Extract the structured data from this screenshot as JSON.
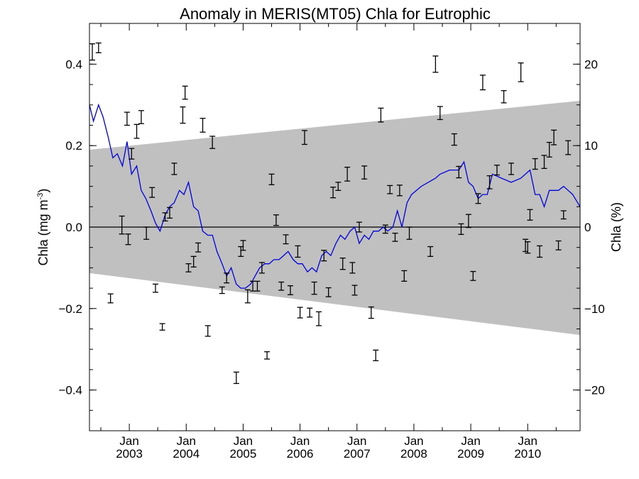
{
  "chart_data": {
    "type": "scatter",
    "title": "Anomaly in MERIS(MT05) Chla for Eutrophic",
    "ylabel_left": "Chla (mg m",
    "ylabel_left_sup": "-3",
    "ylabel_left_close": ")",
    "ylabel_right": "Chla (%)",
    "xlim": [
      2002.3,
      2010.92
    ],
    "ylim": [
      -0.5,
      0.5
    ],
    "ylim_right": [
      -25,
      25
    ],
    "y_ticks": [
      -0.4,
      -0.2,
      0.0,
      0.2,
      0.4
    ],
    "y_tick_labels": [
      "−0.4",
      "−0.2",
      "0.0",
      "0.2",
      "0.4"
    ],
    "y_ticks_right": [
      -20,
      -10,
      0,
      10,
      20
    ],
    "y_tick_labels_right": [
      "−20",
      "−10",
      "0",
      "10",
      "20"
    ],
    "x_ticks": [
      {
        "x": 2003.0,
        "month": "Jan",
        "year": "2003"
      },
      {
        "x": 2004.0,
        "month": "Jan",
        "year": "2004"
      },
      {
        "x": 2005.0,
        "month": "Jan",
        "year": "2005"
      },
      {
        "x": 2006.0,
        "month": "Jan",
        "year": "2006"
      },
      {
        "x": 2007.0,
        "month": "Jan",
        "year": "2007"
      },
      {
        "x": 2008.0,
        "month": "Jan",
        "year": "2008"
      },
      {
        "x": 2009.0,
        "month": "Jan",
        "year": "2009"
      },
      {
        "x": 2010.0,
        "month": "Jan",
        "year": "2010"
      }
    ],
    "band": {
      "color": "#c0c0c0",
      "upper": [
        [
          2002.3,
          0.19
        ],
        [
          2010.92,
          0.31
        ]
      ],
      "lower": [
        [
          2002.3,
          -0.113
        ],
        [
          2010.92,
          -0.265
        ]
      ]
    },
    "zero_line": 0.0,
    "line": {
      "color": "#0000dd",
      "points": [
        [
          2002.3,
          0.3
        ],
        [
          2002.37,
          0.26
        ],
        [
          2002.46,
          0.3
        ],
        [
          2002.54,
          0.27
        ],
        [
          2002.63,
          0.22
        ],
        [
          2002.71,
          0.17
        ],
        [
          2002.79,
          0.18
        ],
        [
          2002.88,
          0.15
        ],
        [
          2002.96,
          0.21
        ],
        [
          2003.04,
          0.13
        ],
        [
          2003.13,
          0.15
        ],
        [
          2003.21,
          0.09
        ],
        [
          2003.29,
          0.07
        ],
        [
          2003.38,
          0.04
        ],
        [
          2003.46,
          0.01
        ],
        [
          2003.54,
          -0.01
        ],
        [
          2003.63,
          0.03
        ],
        [
          2003.71,
          0.05
        ],
        [
          2003.79,
          0.06
        ],
        [
          2003.88,
          0.09
        ],
        [
          2003.96,
          0.08
        ],
        [
          2004.04,
          0.11
        ],
        [
          2004.13,
          0.05
        ],
        [
          2004.21,
          0.04
        ],
        [
          2004.29,
          -0.01
        ],
        [
          2004.38,
          -0.02
        ],
        [
          2004.46,
          -0.02
        ],
        [
          2004.54,
          -0.06
        ],
        [
          2004.63,
          -0.09
        ],
        [
          2004.71,
          -0.12
        ],
        [
          2004.79,
          -0.1
        ],
        [
          2004.88,
          -0.14
        ],
        [
          2004.96,
          -0.15
        ],
        [
          2005.04,
          -0.15
        ],
        [
          2005.13,
          -0.14
        ],
        [
          2005.21,
          -0.12
        ],
        [
          2005.29,
          -0.1
        ],
        [
          2005.38,
          -0.09
        ],
        [
          2005.46,
          -0.09
        ],
        [
          2005.54,
          -0.08
        ],
        [
          2005.63,
          -0.08
        ],
        [
          2005.71,
          -0.07
        ],
        [
          2005.79,
          -0.06
        ],
        [
          2005.88,
          -0.08
        ],
        [
          2005.96,
          -0.09
        ],
        [
          2006.04,
          -0.09
        ],
        [
          2006.13,
          -0.11
        ],
        [
          2006.21,
          -0.1
        ],
        [
          2006.29,
          -0.11
        ],
        [
          2006.38,
          -0.07
        ],
        [
          2006.46,
          -0.06
        ],
        [
          2006.54,
          -0.07
        ],
        [
          2006.63,
          -0.04
        ],
        [
          2006.71,
          -0.02
        ],
        [
          2006.79,
          -0.03
        ],
        [
          2006.88,
          -0.01
        ],
        [
          2006.96,
          0.0
        ],
        [
          2007.04,
          -0.04
        ],
        [
          2007.13,
          -0.02
        ],
        [
          2007.21,
          -0.03
        ],
        [
          2007.29,
          -0.01
        ],
        [
          2007.38,
          -0.01
        ],
        [
          2007.46,
          0.0
        ],
        [
          2007.54,
          -0.01
        ],
        [
          2007.63,
          0.0
        ],
        [
          2007.71,
          0.04
        ],
        [
          2007.79,
          0.0
        ],
        [
          2007.88,
          0.06
        ],
        [
          2007.96,
          0.08
        ],
        [
          2008.13,
          0.1
        ],
        [
          2008.38,
          0.12
        ],
        [
          2008.46,
          0.13
        ],
        [
          2008.63,
          0.14
        ],
        [
          2008.79,
          0.14
        ],
        [
          2008.88,
          0.16
        ],
        [
          2008.96,
          0.11
        ],
        [
          2009.04,
          0.1
        ],
        [
          2009.13,
          0.07
        ],
        [
          2009.21,
          0.08
        ],
        [
          2009.29,
          0.08
        ],
        [
          2009.38,
          0.13
        ],
        [
          2009.54,
          0.12
        ],
        [
          2009.71,
          0.11
        ],
        [
          2009.88,
          0.12
        ],
        [
          2010.04,
          0.14
        ],
        [
          2010.13,
          0.08
        ],
        [
          2010.21,
          0.08
        ],
        [
          2010.29,
          0.05
        ],
        [
          2010.38,
          0.09
        ],
        [
          2010.54,
          0.09
        ],
        [
          2010.63,
          0.1
        ],
        [
          2010.71,
          0.09
        ],
        [
          2010.79,
          0.08
        ],
        [
          2010.92,
          0.05
        ]
      ]
    },
    "errorbars": {
      "color": "#000000",
      "points": [
        [
          2002.35,
          0.43,
          0.02
        ],
        [
          2002.46,
          0.44,
          0.012
        ],
        [
          2002.67,
          -0.175,
          0.011
        ],
        [
          2002.87,
          0.005,
          0.022
        ],
        [
          2002.96,
          0.266,
          0.016
        ],
        [
          2002.98,
          -0.03,
          0.013
        ],
        [
          2003.04,
          0.18,
          0.013
        ],
        [
          2003.13,
          0.235,
          0.017
        ],
        [
          2003.21,
          0.27,
          0.016
        ],
        [
          2003.3,
          -0.015,
          0.015
        ],
        [
          2003.4,
          0.085,
          0.012
        ],
        [
          2003.46,
          -0.15,
          0.01
        ],
        [
          2003.58,
          -0.245,
          0.008
        ],
        [
          2003.63,
          0.025,
          0.01
        ],
        [
          2003.71,
          0.035,
          0.013
        ],
        [
          2003.79,
          0.143,
          0.014
        ],
        [
          2003.94,
          0.275,
          0.02
        ],
        [
          2003.98,
          0.33,
          0.016
        ],
        [
          2004.04,
          -0.1,
          0.01
        ],
        [
          2004.13,
          -0.085,
          0.013
        ],
        [
          2004.21,
          -0.05,
          0.011
        ],
        [
          2004.29,
          0.25,
          0.017
        ],
        [
          2004.38,
          -0.255,
          0.013
        ],
        [
          2004.46,
          0.208,
          0.015
        ],
        [
          2004.63,
          -0.155,
          0.008
        ],
        [
          2004.71,
          -0.125,
          0.012
        ],
        [
          2004.88,
          -0.37,
          0.014
        ],
        [
          2004.96,
          -0.06,
          0.012
        ],
        [
          2005.0,
          -0.045,
          0.012
        ],
        [
          2005.08,
          -0.17,
          0.016
        ],
        [
          2005.17,
          -0.145,
          0.012
        ],
        [
          2005.25,
          -0.145,
          0.012
        ],
        [
          2005.33,
          -0.1,
          0.013
        ],
        [
          2005.42,
          -0.315,
          0.009
        ],
        [
          2005.5,
          0.117,
          0.013
        ],
        [
          2005.58,
          0.017,
          0.013
        ],
        [
          2005.67,
          -0.145,
          0.01
        ],
        [
          2005.75,
          -0.03,
          0.011
        ],
        [
          2005.83,
          -0.155,
          0.011
        ],
        [
          2005.96,
          -0.06,
          0.014
        ],
        [
          2006.0,
          -0.21,
          0.013
        ],
        [
          2006.08,
          0.22,
          0.017
        ],
        [
          2006.17,
          -0.21,
          0.011
        ],
        [
          2006.25,
          -0.15,
          0.015
        ],
        [
          2006.33,
          -0.225,
          0.017
        ],
        [
          2006.42,
          -0.07,
          0.013
        ],
        [
          2006.5,
          -0.16,
          0.011
        ],
        [
          2006.58,
          0.085,
          0.013
        ],
        [
          2006.67,
          0.1,
          0.01
        ],
        [
          2006.75,
          -0.09,
          0.014
        ],
        [
          2006.83,
          0.13,
          0.017
        ],
        [
          2006.92,
          -0.1,
          0.013
        ],
        [
          2006.96,
          -0.155,
          0.012
        ],
        [
          2007.04,
          0.0,
          0.012
        ],
        [
          2007.13,
          0.134,
          0.016
        ],
        [
          2007.25,
          -0.21,
          0.014
        ],
        [
          2007.33,
          -0.315,
          0.013
        ],
        [
          2007.42,
          0.275,
          0.017
        ],
        [
          2007.5,
          -0.005,
          0.01
        ],
        [
          2007.58,
          0.092,
          0.01
        ],
        [
          2007.67,
          -0.025,
          0.01
        ],
        [
          2007.75,
          0.09,
          0.013
        ],
        [
          2007.83,
          -0.12,
          0.013
        ],
        [
          2007.92,
          -0.015,
          0.015
        ],
        [
          2008.29,
          -0.06,
          0.012
        ],
        [
          2008.38,
          0.4,
          0.02
        ],
        [
          2008.46,
          0.28,
          0.016
        ],
        [
          2008.71,
          0.215,
          0.014
        ],
        [
          2008.79,
          0.135,
          0.014
        ],
        [
          2008.83,
          -0.005,
          0.013
        ],
        [
          2008.96,
          0.015,
          0.016
        ],
        [
          2009.04,
          -0.12,
          0.011
        ],
        [
          2009.13,
          0.07,
          0.012
        ],
        [
          2009.21,
          0.355,
          0.018
        ],
        [
          2009.33,
          0.11,
          0.016
        ],
        [
          2009.46,
          0.14,
          0.012
        ],
        [
          2009.58,
          0.32,
          0.015
        ],
        [
          2009.71,
          0.143,
          0.014
        ],
        [
          2009.88,
          0.38,
          0.023
        ],
        [
          2009.96,
          -0.045,
          0.015
        ],
        [
          2010.0,
          -0.05,
          0.014
        ],
        [
          2010.04,
          0.03,
          0.013
        ],
        [
          2010.13,
          0.155,
          0.013
        ],
        [
          2010.21,
          -0.06,
          0.014
        ],
        [
          2010.29,
          0.16,
          0.016
        ],
        [
          2010.38,
          0.19,
          0.018
        ],
        [
          2010.46,
          0.22,
          0.018
        ],
        [
          2010.54,
          -0.045,
          0.011
        ],
        [
          2010.63,
          0.03,
          0.01
        ],
        [
          2010.71,
          0.195,
          0.017
        ]
      ]
    }
  }
}
